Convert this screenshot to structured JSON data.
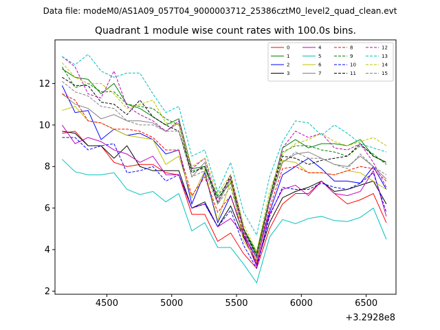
{
  "chart_data": {
    "type": "line",
    "suptitle": "Data file: modeM0/AS1A09_057T04_9000003712_25386cztM0_level2_quad_clean.evt",
    "title": "Quadrant 1 module wise count rates with 100.0s bins.",
    "xlabel": "",
    "ylabel": "",
    "x_offset_label": "+3.2928e8",
    "xlim": [
      4100,
      6730
    ],
    "ylim": [
      1.85,
      14.1
    ],
    "xticks": [
      4500,
      5000,
      5500,
      6000,
      6500
    ],
    "yticks": [
      2,
      4,
      6,
      8,
      10,
      12
    ],
    "x": [
      4155,
      4255,
      4355,
      4455,
      4555,
      4655,
      4755,
      4855,
      4955,
      5055,
      5155,
      5255,
      5355,
      5455,
      5555,
      5655,
      5755,
      5855,
      5955,
      6055,
      6155,
      6255,
      6355,
      6455,
      6555,
      6655
    ],
    "legend_location": "upper right",
    "series": [
      {
        "name": "0",
        "color": "#ff0000",
        "dash": false,
        "values": [
          9.6,
          9.7,
          9.0,
          9.0,
          8.2,
          8.0,
          8.1,
          8.1,
          7.7,
          7.6,
          5.7,
          5.7,
          4.4,
          4.8,
          3.8,
          3.1,
          5.0,
          6.2,
          6.7,
          6.7,
          7.3,
          6.7,
          6.2,
          6.4,
          6.7,
          5.3
        ]
      },
      {
        "name": "1",
        "color": "#008000",
        "dash": false,
        "values": [
          12.7,
          12.3,
          12.2,
          11.5,
          12.0,
          11.0,
          10.8,
          10.4,
          10.0,
          10.3,
          7.9,
          8.0,
          6.5,
          7.2,
          5.0,
          3.8,
          6.5,
          8.9,
          9.3,
          8.9,
          9.1,
          9.1,
          9.0,
          9.3,
          8.5,
          8.2
        ]
      },
      {
        "name": "2",
        "color": "#0000ff",
        "dash": false,
        "values": [
          11.9,
          10.6,
          10.7,
          9.3,
          9.8,
          9.5,
          9.6,
          9.3,
          8.6,
          8.8,
          6.2,
          7.7,
          5.3,
          6.6,
          4.7,
          3.6,
          5.8,
          7.6,
          8.0,
          8.4,
          7.9,
          7.3,
          7.3,
          7.2,
          8.0,
          6.9
        ]
      },
      {
        "name": "3",
        "color": "#000000",
        "dash": false,
        "values": [
          9.7,
          9.6,
          9.0,
          9.0,
          8.4,
          9.0,
          8.0,
          7.8,
          7.8,
          7.8,
          6.0,
          6.3,
          5.1,
          6.1,
          4.6,
          3.3,
          5.3,
          6.5,
          6.8,
          7.0,
          7.3,
          6.8,
          6.9,
          7.1,
          7.3,
          6.2
        ]
      },
      {
        "name": "4",
        "color": "#bf00bf",
        "dash": false,
        "values": [
          10.0,
          9.1,
          9.4,
          9.2,
          8.8,
          8.6,
          8.2,
          8.5,
          7.6,
          7.6,
          6.0,
          6.2,
          5.1,
          5.5,
          4.7,
          3.2,
          5.7,
          6.9,
          7.1,
          6.6,
          7.3,
          6.7,
          6.6,
          6.8,
          7.8,
          5.6
        ]
      },
      {
        "name": "5",
        "color": "#00bfbf",
        "dash": false,
        "values": [
          8.35,
          7.75,
          7.6,
          7.6,
          7.7,
          6.9,
          6.65,
          6.8,
          6.3,
          6.7,
          4.9,
          5.3,
          4.1,
          4.1,
          3.3,
          2.4,
          4.6,
          5.45,
          5.25,
          5.5,
          5.6,
          5.4,
          5.35,
          5.55,
          6.0,
          4.5
        ]
      },
      {
        "name": "6",
        "color": "#bfbf00",
        "dash": false,
        "values": [
          10.7,
          10.9,
          10.2,
          10.1,
          9.8,
          9.5,
          9.4,
          9.3,
          8.1,
          8.5,
          6.5,
          7.8,
          5.4,
          7.3,
          4.4,
          3.5,
          6.3,
          8.3,
          8.2,
          7.7,
          7.7,
          7.6,
          7.8,
          7.7,
          7.3,
          6.9
        ]
      },
      {
        "name": "7",
        "color": "#7f7f7f",
        "dash": false,
        "values": [
          11.5,
          11.0,
          10.8,
          10.3,
          10.5,
          10.2,
          10.2,
          10.1,
          9.7,
          10.1,
          7.5,
          8.2,
          6.2,
          7.4,
          4.9,
          3.7,
          6.3,
          8.2,
          8.6,
          8.7,
          8.4,
          8.1,
          8.0,
          8.5,
          8.0,
          7.4
        ]
      },
      {
        "name": "8",
        "color": "#ff0000",
        "dash": true,
        "values": [
          11.5,
          11.2,
          10.2,
          10.1,
          9.8,
          9.8,
          9.7,
          9.4,
          8.8,
          8.8,
          6.6,
          7.5,
          5.8,
          6.6,
          4.8,
          3.4,
          6.0,
          7.9,
          8.0,
          7.7,
          7.7,
          7.6,
          7.8,
          8.0,
          7.9,
          7.3
        ]
      },
      {
        "name": "9",
        "color": "#008000",
        "dash": true,
        "values": [
          12.8,
          11.8,
          12.0,
          11.6,
          11.6,
          11.0,
          10.9,
          10.8,
          10.3,
          10.0,
          7.8,
          7.9,
          6.6,
          7.4,
          5.0,
          3.9,
          6.4,
          8.7,
          9.0,
          9.0,
          8.8,
          8.7,
          8.5,
          9.0,
          8.6,
          8.1
        ]
      },
      {
        "name": "10",
        "color": "#0000ff",
        "dash": true,
        "values": [
          9.4,
          9.4,
          8.8,
          9.0,
          9.1,
          7.7,
          7.8,
          8.0,
          7.3,
          7.6,
          6.0,
          6.2,
          5.1,
          5.9,
          4.2,
          3.1,
          5.6,
          7.0,
          6.9,
          6.9,
          7.2,
          7.0,
          6.9,
          7.2,
          7.7,
          5.8
        ]
      },
      {
        "name": "11",
        "color": "#000000",
        "dash": true,
        "values": [
          12.3,
          11.9,
          11.9,
          11.1,
          11.0,
          10.5,
          11.2,
          10.4,
          10.0,
          9.7,
          7.7,
          8.0,
          6.3,
          7.6,
          5.0,
          3.7,
          6.4,
          8.5,
          8.4,
          8.1,
          8.3,
          8.4,
          8.5,
          9.1,
          8.5,
          8.2
        ]
      },
      {
        "name": "12",
        "color": "#bf00bf",
        "dash": true,
        "values": [
          13.3,
          12.8,
          11.5,
          11.3,
          12.6,
          10.9,
          10.5,
          10.2,
          9.7,
          10.2,
          7.9,
          8.4,
          6.3,
          7.5,
          4.9,
          3.3,
          6.3,
          8.9,
          9.7,
          9.4,
          9.6,
          8.9,
          8.8,
          9.1,
          8.2,
          7.0
        ]
      },
      {
        "name": "13",
        "color": "#00bfbf",
        "dash": true,
        "values": [
          13.3,
          12.9,
          13.4,
          12.6,
          12.3,
          12.5,
          12.5,
          11.5,
          10.6,
          10.9,
          8.5,
          8.8,
          6.8,
          8.2,
          5.8,
          4.7,
          7.5,
          9.2,
          10.2,
          10.1,
          9.5,
          10.0,
          9.6,
          9.1,
          8.9,
          8.7
        ]
      },
      {
        "name": "14",
        "color": "#bfbf00",
        "dash": true,
        "values": [
          13.0,
          12.3,
          12.0,
          12.0,
          11.5,
          10.8,
          11.0,
          11.2,
          10.1,
          10.0,
          8.0,
          8.4,
          6.7,
          7.6,
          5.2,
          3.9,
          6.8,
          8.6,
          9.1,
          9.3,
          9.6,
          9.2,
          9.0,
          9.2,
          9.4,
          9.0
        ]
      },
      {
        "name": "15",
        "color": "#7f7f7f",
        "dash": true,
        "values": [
          12.1,
          11.6,
          11.4,
          10.9,
          10.8,
          10.2,
          10.0,
          10.0,
          9.7,
          9.7,
          7.5,
          7.8,
          6.2,
          7.0,
          4.9,
          3.6,
          6.4,
          8.2,
          8.7,
          8.4,
          8.4,
          8.1,
          7.9,
          8.6,
          8.0,
          7.6
        ]
      }
    ]
  }
}
